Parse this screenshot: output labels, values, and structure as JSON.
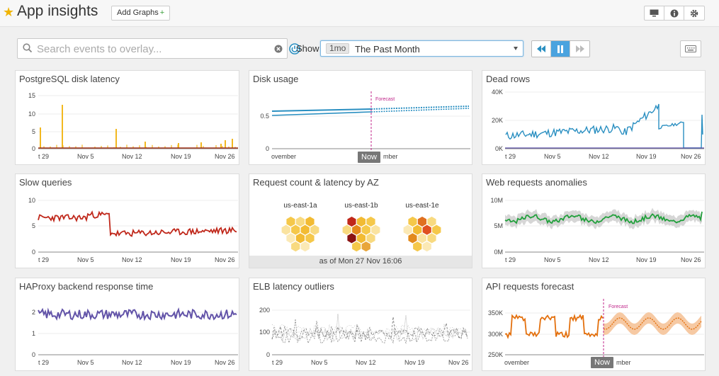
{
  "header": {
    "title": "App insights",
    "add_graphs_label": "Add Graphs",
    "add_graphs_plus": "+"
  },
  "toolbar": {
    "search_placeholder": "Search events to overlay...",
    "show_label": "Show",
    "timeframe_badge": "1mo",
    "timeframe_text": "The Past Month"
  },
  "colors": {
    "accent": "#4aa3df",
    "yellow": "#f2b820",
    "blue": "#2a8fc1",
    "red": "#c0281b",
    "green": "#22a03c",
    "purple": "#6253a8",
    "orange": "#e3700e",
    "forecast": "#c0268a"
  },
  "widgets": {
    "pg": {
      "title": "PostgreSQL disk latency",
      "yticks": [
        "15",
        "10",
        "5",
        "0"
      ],
      "xticks": [
        "t 29",
        "Nov 5",
        "Nov 12",
        "Nov 19",
        "Nov 26"
      ]
    },
    "disk": {
      "title": "Disk usage",
      "yticks": [
        "0.5",
        "0"
      ],
      "xticks": [
        "ovember",
        "mber"
      ],
      "forecast_label": "Forecast",
      "now_label": "Now"
    },
    "dead": {
      "title": "Dead rows",
      "yticks": [
        "40K",
        "20K",
        "0K"
      ],
      "xticks": [
        "t 29",
        "Nov 5",
        "Nov 12",
        "Nov 19",
        "Nov 26"
      ]
    },
    "slow": {
      "title": "Slow queries",
      "yticks": [
        "10",
        "5",
        "0"
      ],
      "xticks": [
        "t 29",
        "Nov 5",
        "Nov 12",
        "Nov 19",
        "Nov 26"
      ]
    },
    "req": {
      "title": "Request count & latency by AZ",
      "zones": [
        "us-east-1a",
        "us-east-1b",
        "us-east-1e"
      ],
      "as_of": "as of Mon 27 Nov 16:06"
    },
    "web": {
      "title": "Web requests anomalies",
      "yticks": [
        "10M",
        "5M",
        "0M"
      ],
      "xticks": [
        "t 29",
        "Nov 5",
        "Nov 12",
        "Nov 19",
        "Nov 26"
      ]
    },
    "ha": {
      "title": "HAProxy backend response time",
      "yticks": [
        "2",
        "1",
        "0"
      ],
      "xticks": [
        "t 29",
        "Nov 5",
        "Nov 12",
        "Nov 19",
        "Nov 26"
      ]
    },
    "elb": {
      "title": "ELB latency outliers",
      "yticks": [
        "200",
        "100",
        "0"
      ],
      "xticks": [
        "t 29",
        "Nov 5",
        "Nov 12",
        "Nov 19",
        "Nov 26"
      ]
    },
    "api": {
      "title": "API requests forecast",
      "yticks": [
        "350K",
        "300K",
        "250K"
      ],
      "xticks": [
        "ovember",
        "mber"
      ],
      "forecast_label": "Forecast",
      "now_label": "Now"
    }
  }
}
